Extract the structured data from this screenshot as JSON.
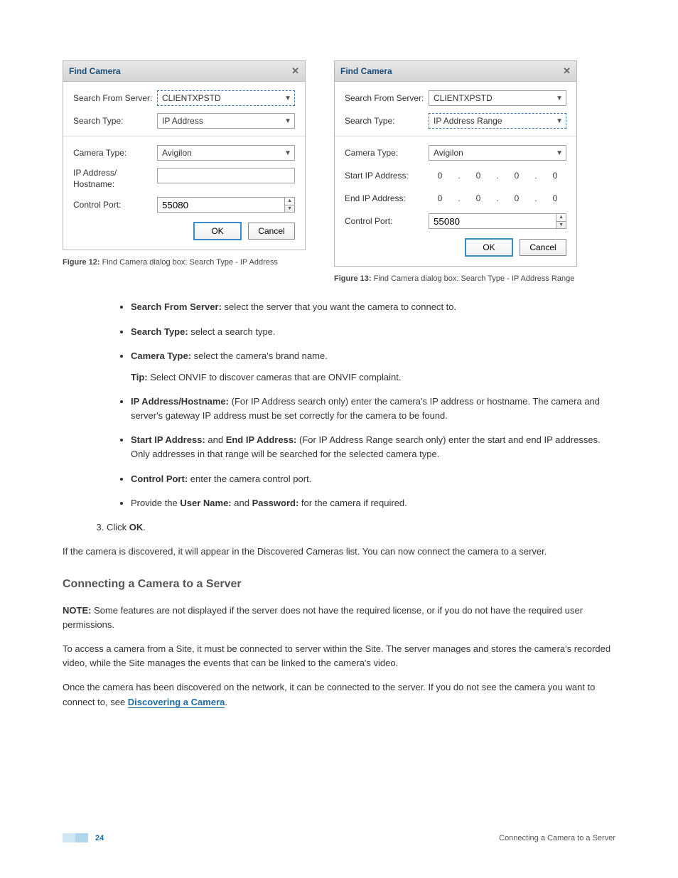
{
  "dialog1": {
    "title": "Find Camera",
    "server_label": "Search From Server:",
    "server_value": "CLIENTXPSTD",
    "type_label": "Search Type:",
    "type_value": "IP Address",
    "camtype_label": "Camera Type:",
    "camtype_value": "Avigilon",
    "ip_label": "IP Address/ Hostname:",
    "port_label": "Control Port:",
    "port_value": "55080",
    "ok": "OK",
    "cancel": "Cancel",
    "caption_bold": "Figure 12:",
    "caption_text": " Find Camera dialog box: Search Type - IP Address"
  },
  "dialog2": {
    "title": "Find Camera",
    "server_label": "Search From Server:",
    "server_value": "CLIENTXPSTD",
    "type_label": "Search Type:",
    "type_value": "IP Address Range",
    "camtype_label": "Camera Type:",
    "camtype_value": "Avigilon",
    "start_label": "Start IP Address:",
    "end_label": "End IP Address:",
    "octet": "0",
    "port_label": "Control Port:",
    "port_value": "55080",
    "ok": "OK",
    "cancel": "Cancel",
    "caption_bold": "Figure 13:",
    "caption_text": " Find Camera dialog box: Search Type - IP Address Range"
  },
  "bullets": {
    "b1_bold": "Search From Server:",
    "b1_text": " select the server that you want the camera to connect to.",
    "b2_bold": "Search Type:",
    "b2_text": " select a search type.",
    "b3_bold": "Camera Type:",
    "b3_text": " select the camera's brand name.",
    "b3_tip_bold": "Tip:",
    "b3_tip_text": " Select ONVIF to discover cameras that are ONVIF complaint.",
    "b4_bold": "IP Address/Hostname:",
    "b4_text": " (For IP Address search only) enter the camera's IP address or hostname. The camera and server's gateway IP address must be set correctly for the camera to be found.",
    "b5_bold": "Start IP Address:",
    "b5_mid": " and ",
    "b5_bold2": "End IP Address:",
    "b5_text": " (For IP Address Range search only) enter the start and end IP addresses. Only addresses in that range will be searched for the selected camera type.",
    "b6_bold": "Control Port:",
    "b6_text": " enter the camera control port.",
    "b7_pre": "Provide the ",
    "b7_bold": "User Name:",
    "b7_mid": " and ",
    "b7_bold2": "Password:",
    "b7_text": " for the camera if required."
  },
  "ol": {
    "item3_pre": "Click ",
    "item3_bold": "OK",
    "item3_post": "."
  },
  "para1": "If the camera is discovered, it will appear in the Discovered Cameras list. You can now connect the camera to a server.",
  "section_heading": "Connecting a Camera to a Server",
  "note_bold": "NOTE:",
  "note_text": " Some features are not displayed if the server does not have the required license, or if you do not have the required user permissions.",
  "para2": "To access a camera from a Site, it must be connected to server within the Site. The server manages and stores the camera's recorded video, while the Site manages the events that can be linked to the camera's video.",
  "para3_pre": "Once the camera has been discovered on the network, it can be connected to the server. If you do not see the camera you want to connect to, see ",
  "para3_link": "Discovering a Camera",
  "para3_post": ".",
  "footer": {
    "page": "24",
    "right": "Connecting a Camera to a Server"
  }
}
